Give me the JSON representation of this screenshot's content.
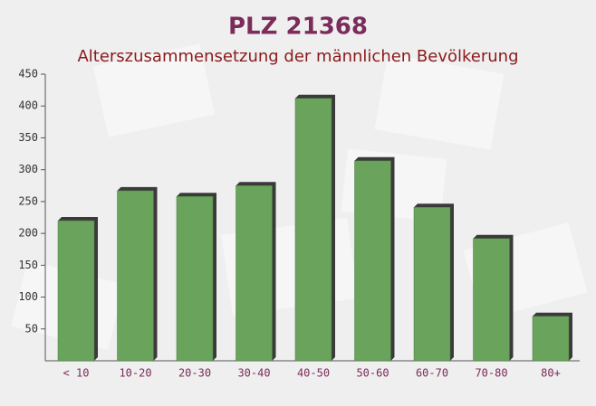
{
  "chart_data": {
    "type": "bar",
    "title": "PLZ 21368",
    "subtitle": "Alterszusammensetzung der männlichen Bevölkerung",
    "categories": [
      "< 10",
      "10-20",
      "20-30",
      "30-40",
      "40-50",
      "50-60",
      "60-70",
      "70-80",
      "80+"
    ],
    "values": [
      220,
      267,
      258,
      275,
      412,
      314,
      241,
      192,
      70
    ],
    "color": "#6aa35c",
    "ylim": [
      0,
      450
    ],
    "yticks": [
      50,
      100,
      150,
      200,
      250,
      300,
      350,
      400,
      450
    ],
    "grid": false
  }
}
